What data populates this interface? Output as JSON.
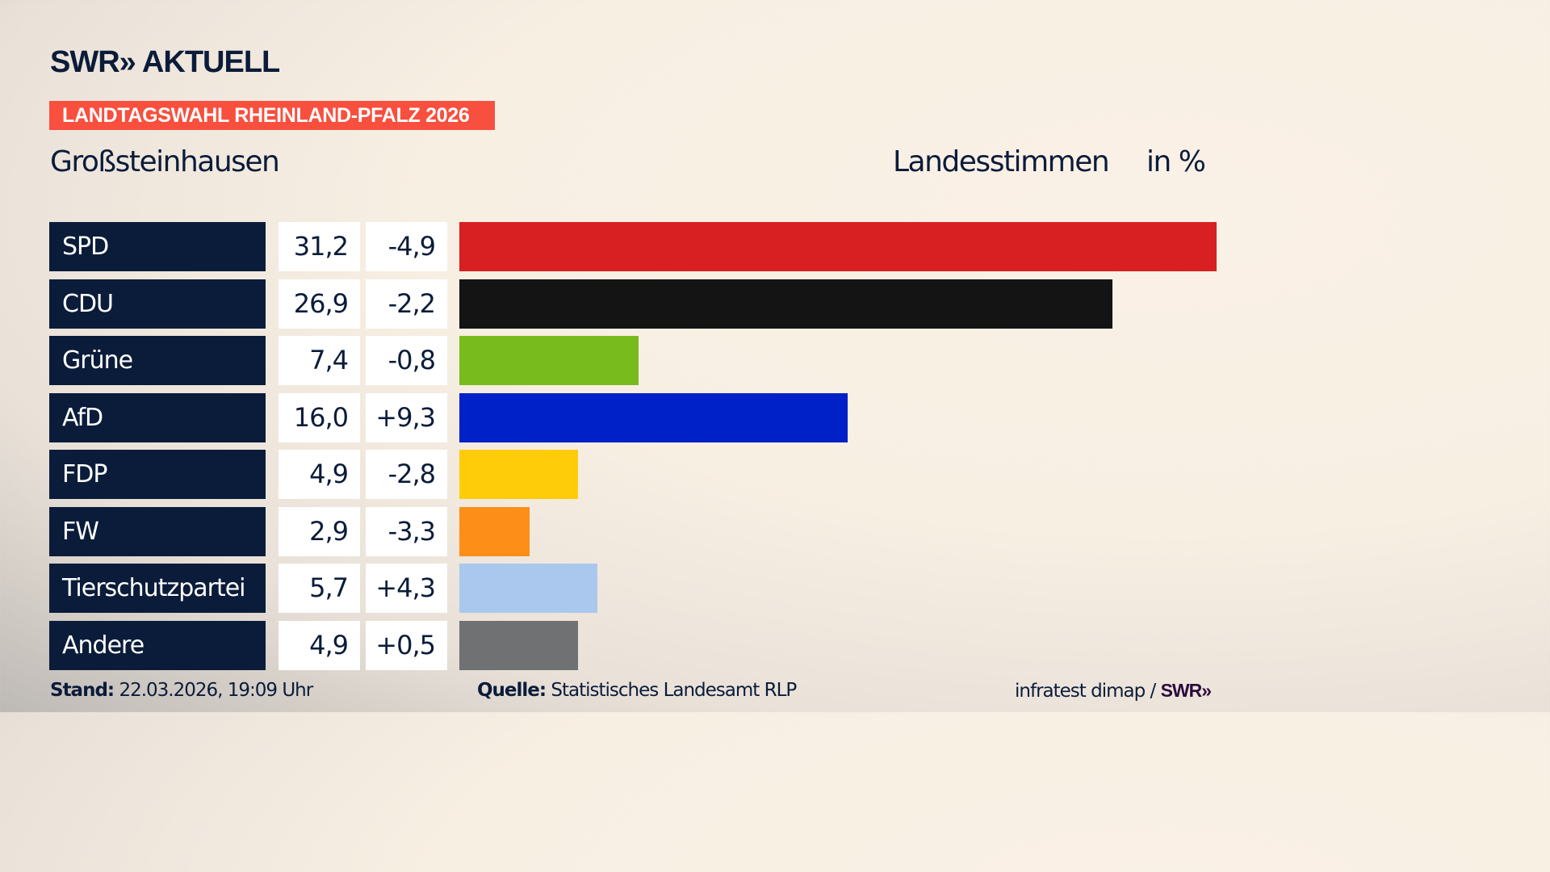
{
  "header": {
    "logo": "SWR» AKTUELL",
    "badge": "LANDTAGSWAHL RHEINLAND-PFALZ 2026",
    "place": "Großsteinhausen",
    "measure": "Landesstimmen",
    "unit": "in %"
  },
  "chart_data": {
    "type": "bar",
    "orientation": "horizontal",
    "xlim": [
      0,
      31.2
    ],
    "categories": [
      "SPD",
      "CDU",
      "Grüne",
      "AfD",
      "FDP",
      "FW",
      "Tierschutzpartei",
      "Andere"
    ],
    "values": [
      "31,2",
      "26,9",
      "7,4",
      "16,0",
      "4,9",
      "2,9",
      "5,7",
      "4,9"
    ],
    "numeric_values": [
      31.2,
      26.9,
      7.4,
      16.0,
      4.9,
      2.9,
      5.7,
      4.9
    ],
    "changes": [
      "-4,9",
      "-2,2",
      "-0,8",
      "+9,3",
      "-2,8",
      "-3,3",
      "+4,3",
      "+0,5"
    ],
    "colors": [
      "#d81f21",
      "#141414",
      "#78bb1d",
      "#0020c8",
      "#ffcc0a",
      "#fd8e18",
      "#aac8ee",
      "#707173"
    ]
  },
  "footer": {
    "stand_label": "Stand:",
    "stand": "22.03.2026, 19:09 Uhr",
    "source_label": "Quelle:",
    "source": "Statistisches Landesamt RLP",
    "credit": "infratest dimap /",
    "credit_logo": "SWR»"
  }
}
